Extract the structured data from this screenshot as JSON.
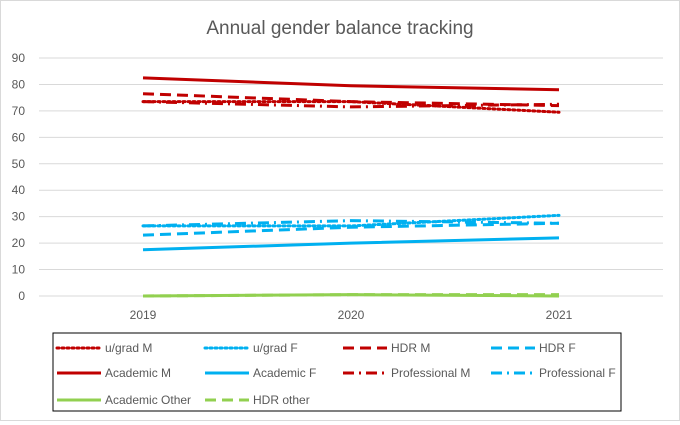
{
  "chart_data": {
    "type": "line",
    "title": "Annual gender balance tracking",
    "xlabel": "",
    "ylabel": "",
    "categories": [
      "2019",
      "2020",
      "2021"
    ],
    "ylim": [
      0,
      90
    ],
    "yticks": [
      "0",
      "10",
      "20",
      "30",
      "40",
      "50",
      "60",
      "70",
      "80",
      "90"
    ],
    "grid": true,
    "legend_position": "bottom",
    "series": [
      {
        "name": "u/grad M",
        "values": [
          73.5,
          73.5,
          69.5
        ],
        "color": "#C00000",
        "style": "dotted"
      },
      {
        "name": "u/grad F",
        "values": [
          26.5,
          26.5,
          30.5
        ],
        "color": "#00B0F0",
        "style": "dotted"
      },
      {
        "name": "HDR M",
        "values": [
          76.5,
          73.5,
          72.0
        ],
        "color": "#C00000",
        "style": "dash"
      },
      {
        "name": "HDR F",
        "values": [
          23.0,
          26.0,
          27.5
        ],
        "color": "#00B0F0",
        "style": "dash"
      },
      {
        "name": "Academic M",
        "values": [
          82.5,
          79.5,
          78.0
        ],
        "color": "#C00000",
        "style": "solid"
      },
      {
        "name": "Academic F",
        "values": [
          17.5,
          20.0,
          22.0
        ],
        "color": "#00B0F0",
        "style": "solid"
      },
      {
        "name": "Professional M",
        "values": [
          73.5,
          71.5,
          72.5
        ],
        "color": "#C00000",
        "style": "dashdot"
      },
      {
        "name": "Professional F",
        "values": [
          26.5,
          28.5,
          27.5
        ],
        "color": "#00B0F0",
        "style": "dashdot"
      },
      {
        "name": "Academic Other",
        "values": [
          0.0,
          0.5,
          0.0
        ],
        "color": "#92D050",
        "style": "solid"
      },
      {
        "name": "HDR other",
        "values": [
          0.0,
          0.5,
          0.5
        ],
        "color": "#92D050",
        "style": "dash"
      }
    ]
  }
}
